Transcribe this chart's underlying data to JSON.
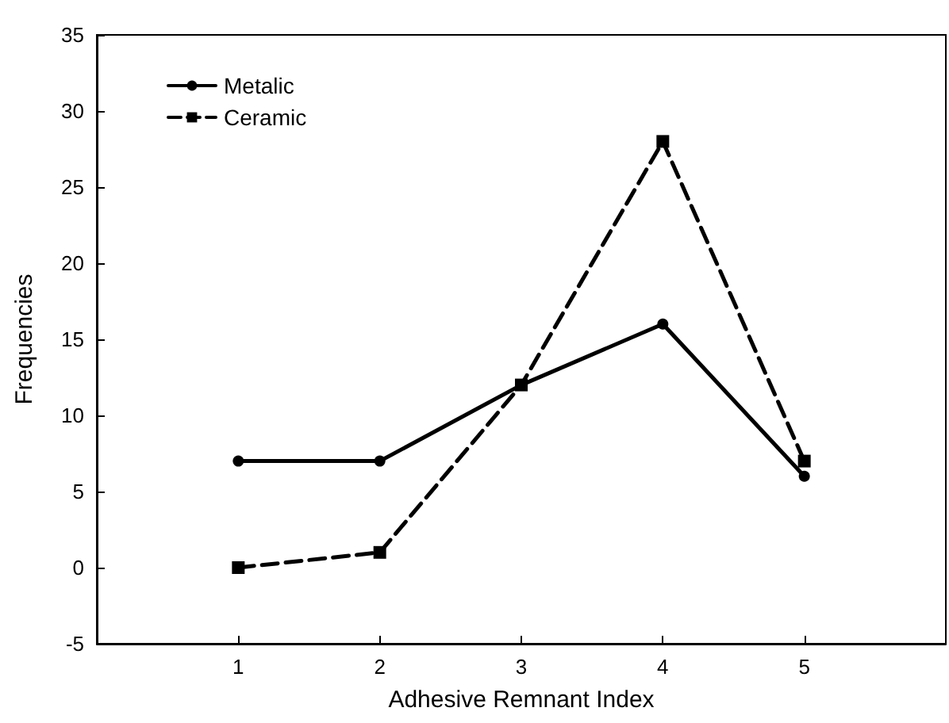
{
  "chart_data": {
    "type": "line",
    "xlabel": "Adhesive Remnant Index",
    "ylabel": "Frequencies",
    "x": [
      1,
      2,
      3,
      4,
      5
    ],
    "series": [
      {
        "name": "Metalic",
        "color": "#000000",
        "values": [
          7,
          7,
          12,
          16,
          6
        ],
        "marker": "circle",
        "line_style": "solid"
      },
      {
        "name": "Ceramic",
        "color": "#000000",
        "values": [
          0,
          1,
          12,
          28,
          7
        ],
        "marker": "square",
        "line_style": "dashed"
      }
    ],
    "xlim": [
      0,
      6
    ],
    "xticks": [
      1,
      2,
      3,
      4,
      5
    ],
    "ylim": [
      -5,
      35
    ],
    "yticks": [
      -5,
      0,
      5,
      10,
      15,
      20,
      25,
      30,
      35
    ],
    "legend": "top left"
  }
}
